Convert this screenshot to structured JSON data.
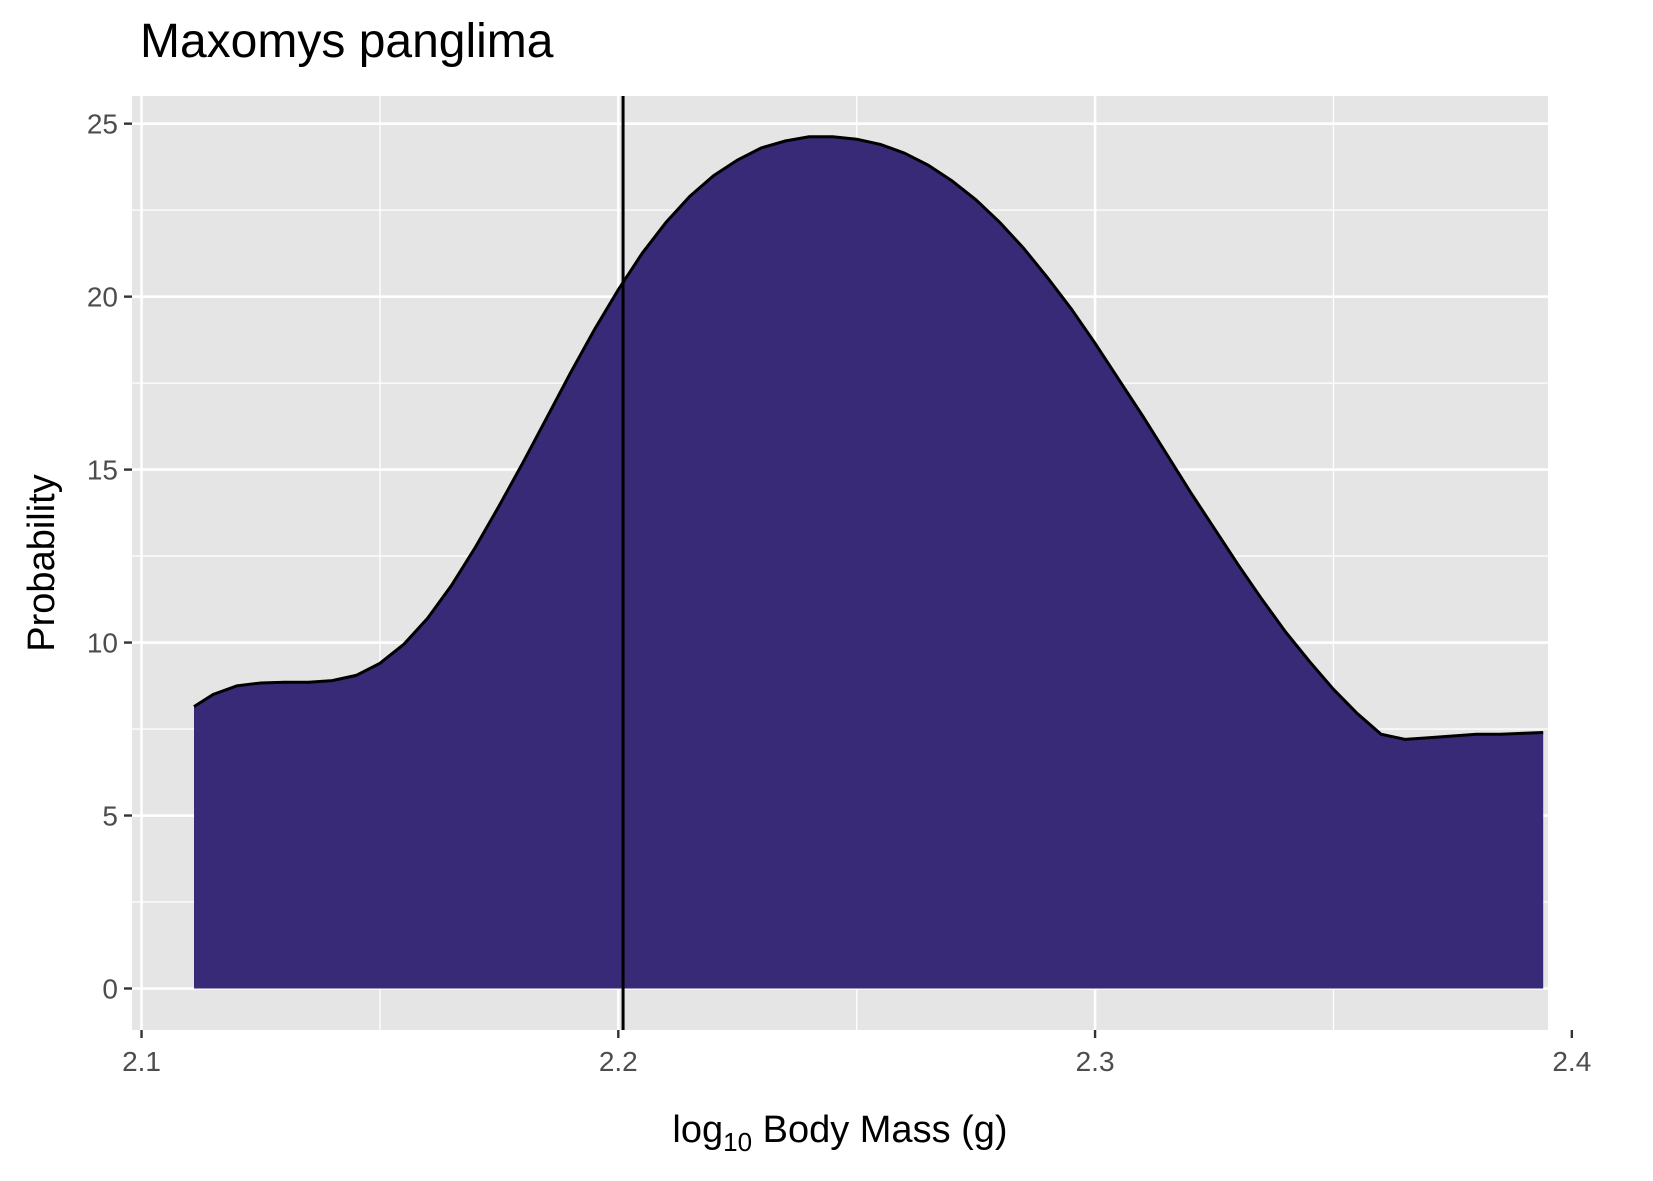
{
  "chart_data": {
    "type": "area",
    "title": "Maxomys panglima",
    "xlabel_prefix": "log",
    "xlabel_sub": "10",
    "xlabel_suffix": " Body Mass (g)",
    "ylabel": "Probability",
    "xlim": [
      2.098,
      2.395
    ],
    "ylim": [
      -1.2,
      25.8
    ],
    "x_ticks": [
      2.1,
      2.2,
      2.3,
      2.4
    ],
    "x_tick_labels": [
      "2.1",
      "2.2",
      "2.3",
      "2.4"
    ],
    "y_ticks": [
      0,
      5,
      10,
      15,
      20,
      25
    ],
    "y_tick_labels": [
      "0",
      "5",
      "10",
      "15",
      "20",
      "25"
    ],
    "grid": true,
    "fill_color": "#382a77",
    "line_color": "#000000",
    "panel_color": "#e5e5e5",
    "vline_x": 2.201,
    "series": [
      {
        "x": [
          2.111,
          2.115,
          2.12,
          2.125,
          2.13,
          2.135,
          2.14,
          2.145,
          2.15,
          2.155,
          2.16,
          2.165,
          2.17,
          2.175,
          2.18,
          2.185,
          2.19,
          2.195,
          2.2,
          2.205,
          2.21,
          2.215,
          2.22,
          2.225,
          2.23,
          2.235,
          2.24,
          2.245,
          2.25,
          2.255,
          2.26,
          2.265,
          2.27,
          2.275,
          2.28,
          2.285,
          2.29,
          2.295,
          2.3,
          2.305,
          2.31,
          2.315,
          2.32,
          2.325,
          2.33,
          2.335,
          2.34,
          2.345,
          2.35,
          2.355,
          2.36,
          2.365,
          2.37,
          2.375,
          2.38,
          2.385,
          2.39,
          2.394
        ],
        "y": [
          8.15,
          8.5,
          8.75,
          8.83,
          8.85,
          8.85,
          8.9,
          9.05,
          9.4,
          9.95,
          10.7,
          11.65,
          12.75,
          13.95,
          15.2,
          16.5,
          17.8,
          19.05,
          20.2,
          21.25,
          22.15,
          22.9,
          23.5,
          23.95,
          24.3,
          24.5,
          24.62,
          24.62,
          24.55,
          24.4,
          24.15,
          23.8,
          23.35,
          22.8,
          22.15,
          21.4,
          20.55,
          19.65,
          18.65,
          17.6,
          16.55,
          15.45,
          14.35,
          13.3,
          12.25,
          11.25,
          10.3,
          9.45,
          8.65,
          7.95,
          7.35,
          7.2,
          7.25,
          7.3,
          7.35,
          7.35,
          7.38,
          7.4
        ]
      }
    ]
  }
}
